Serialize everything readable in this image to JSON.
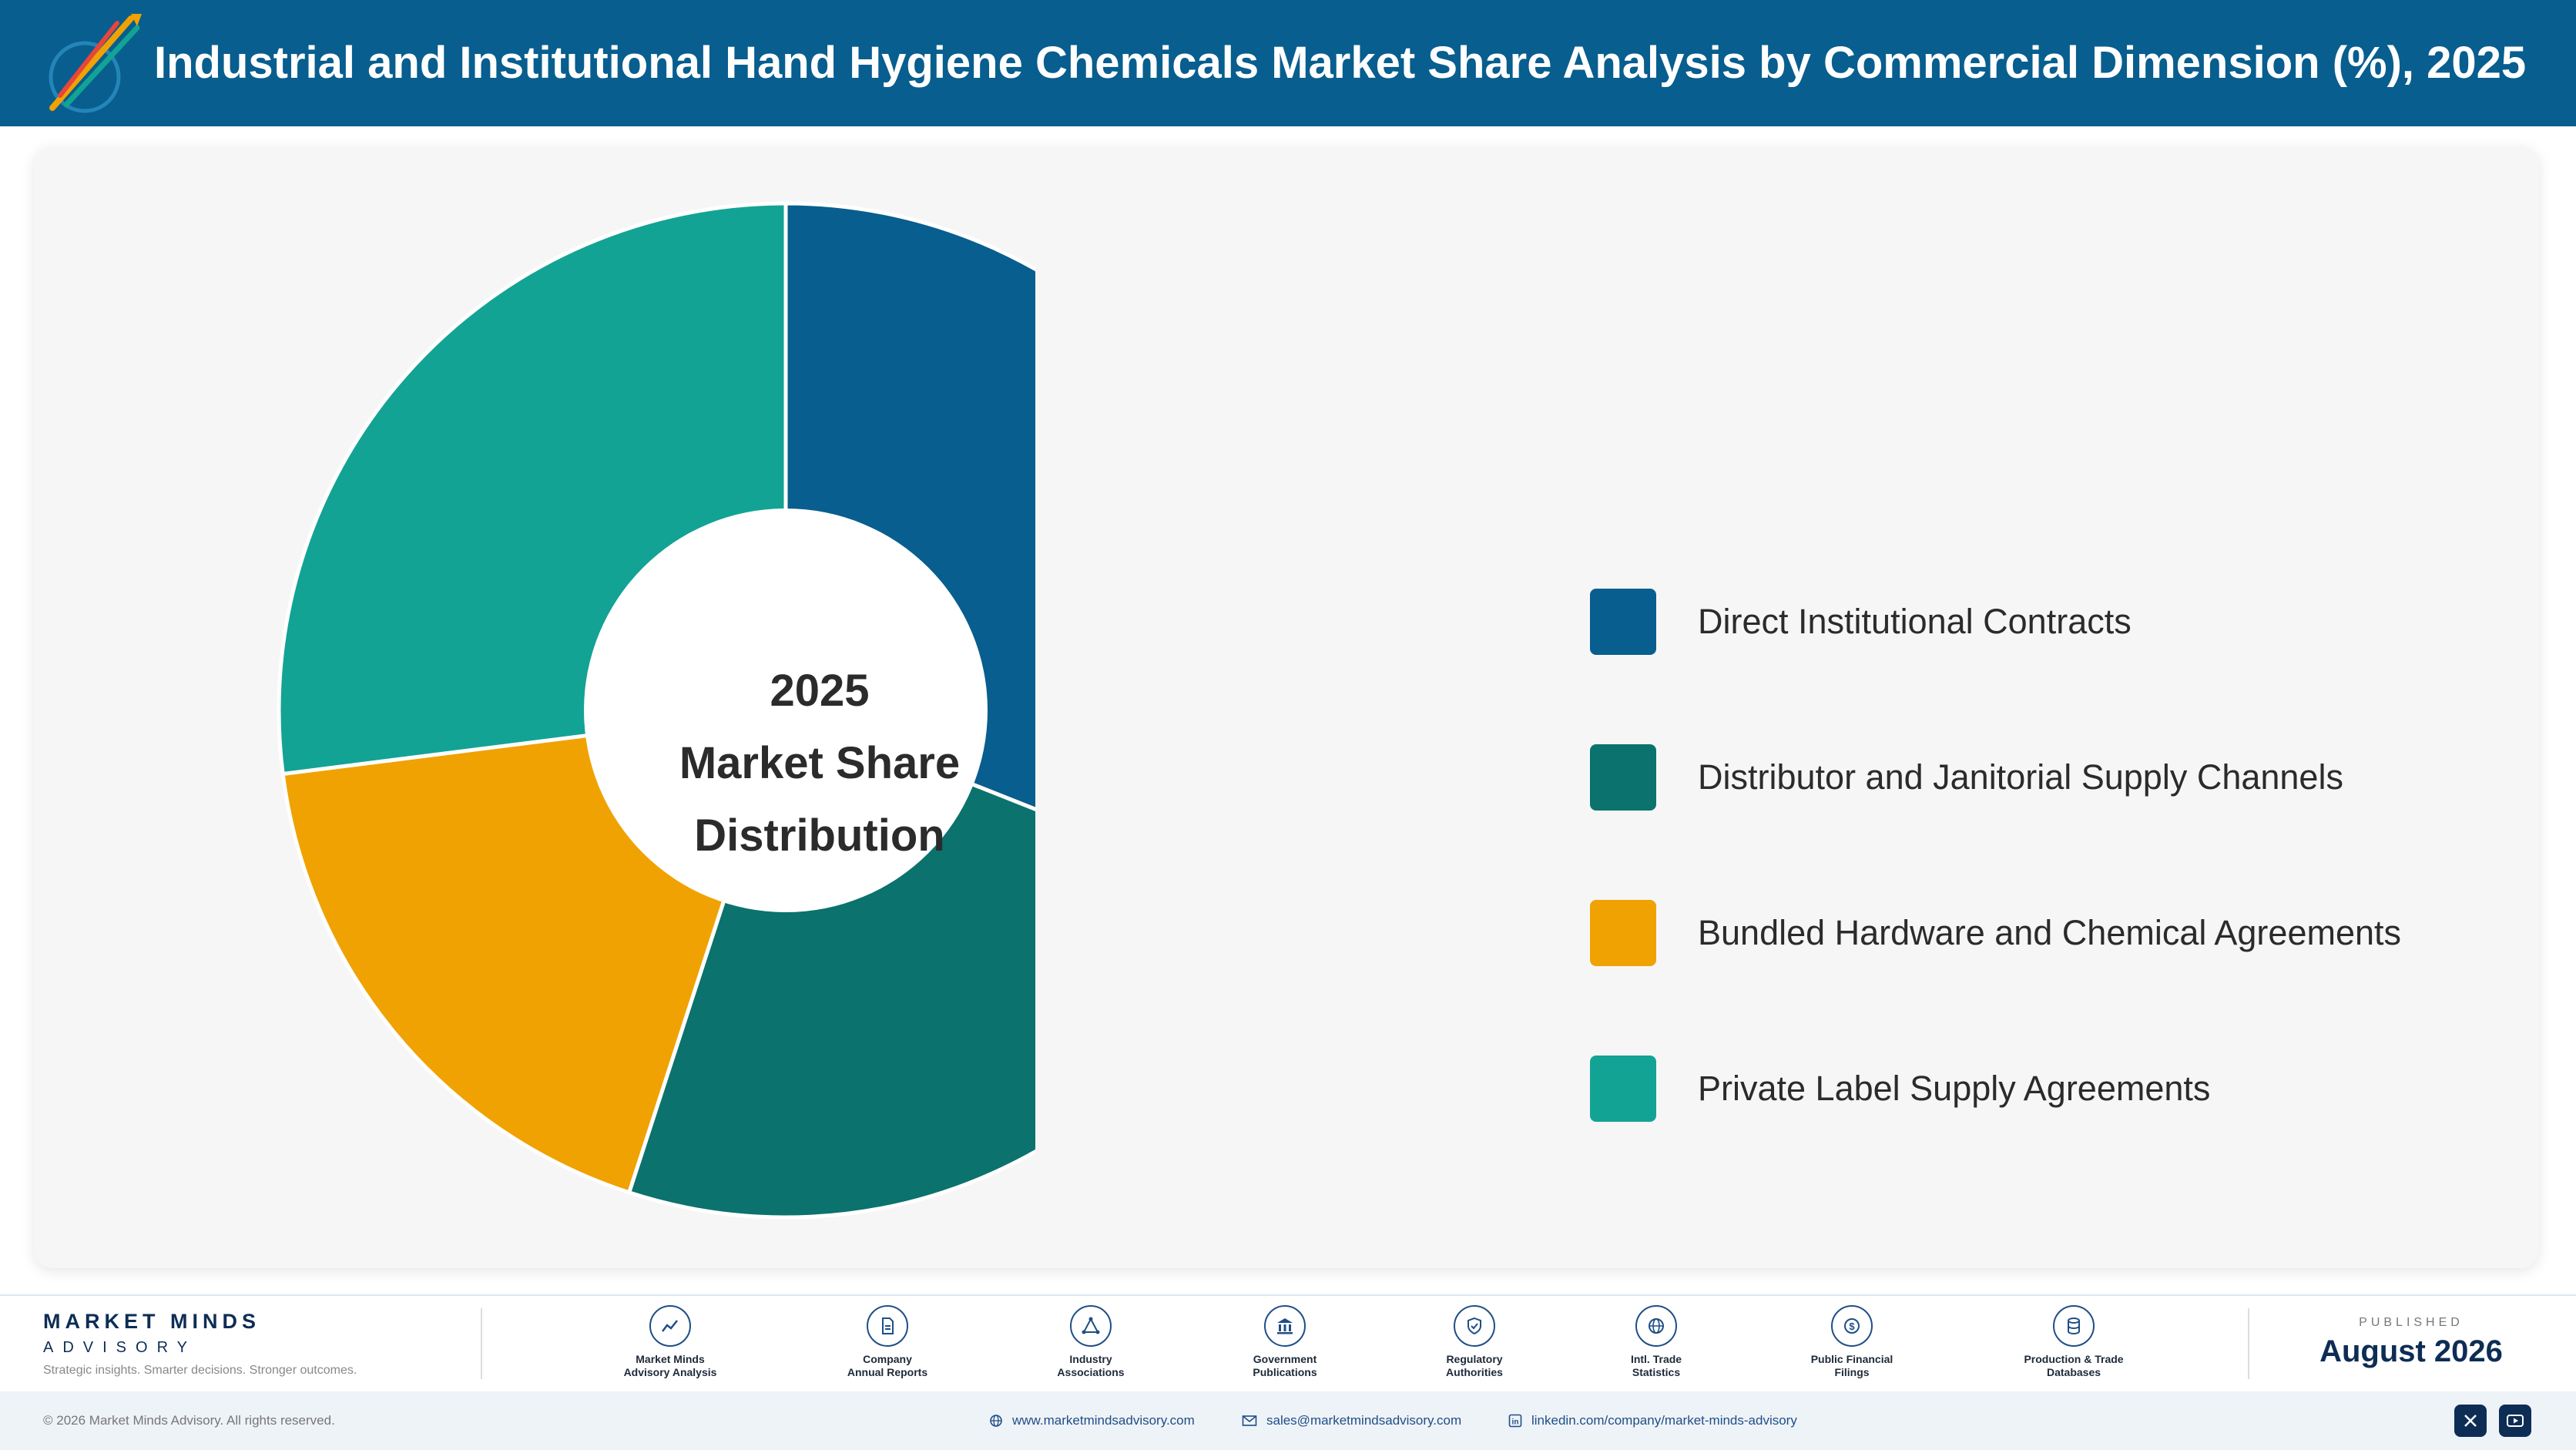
{
  "header": {
    "title": "Industrial and Institutional Hand Hygiene Chemicals Market Share Analysis by Commercial Dimension (%), 2025"
  },
  "chart_data": {
    "type": "pie",
    "title": "Industrial and Institutional Hand Hygiene Chemicals Market Share Analysis by Commercial Dimension (%), 2025",
    "center_label": [
      "2025",
      "Market Share",
      "Distribution"
    ],
    "categories": [
      "Direct Institutional Contracts",
      "Distributor and Janitorial Supply Channels",
      "Bundled Hardware and Chemical Agreements",
      "Private Label Supply Agreements"
    ],
    "values": [
      31,
      24,
      18,
      27
    ],
    "colors": [
      "#085e8e",
      "#0b726d",
      "#f0a202",
      "#12a394"
    ],
    "legend_position": "right",
    "donut": true
  },
  "footer": {
    "brand_name": "MARKET MINDS",
    "brand_sub": "ADVISORY",
    "tagline": "Strategic insights. Smarter decisions. Stronger outcomes.",
    "sources": [
      {
        "label": "Market Minds\nAdvisory Analysis",
        "icon": "trend-chart-icon"
      },
      {
        "label": "Company\nAnnual Reports",
        "icon": "document-icon"
      },
      {
        "label": "Industry\nAssociations",
        "icon": "network-icon"
      },
      {
        "label": "Government\nPublications",
        "icon": "government-building-icon"
      },
      {
        "label": "Regulatory\nAuthorities",
        "icon": "shield-check-icon"
      },
      {
        "label": "Intl. Trade\nStatistics",
        "icon": "globe-icon"
      },
      {
        "label": "Public Financial\nFilings",
        "icon": "coin-icon"
      },
      {
        "label": "Production & Trade\nDatabases",
        "icon": "database-icon"
      }
    ],
    "published_label": "PUBLISHED",
    "published_date": "August 2026",
    "copyright": "© 2026 Market Minds Advisory. All rights reserved.",
    "website": "www.marketmindsadvisory.com",
    "email": "sales@marketmindsadvisory.com",
    "linkedin": "linkedin.com/company/market-minds-advisory",
    "social": [
      "x-icon",
      "youtube-icon"
    ]
  }
}
